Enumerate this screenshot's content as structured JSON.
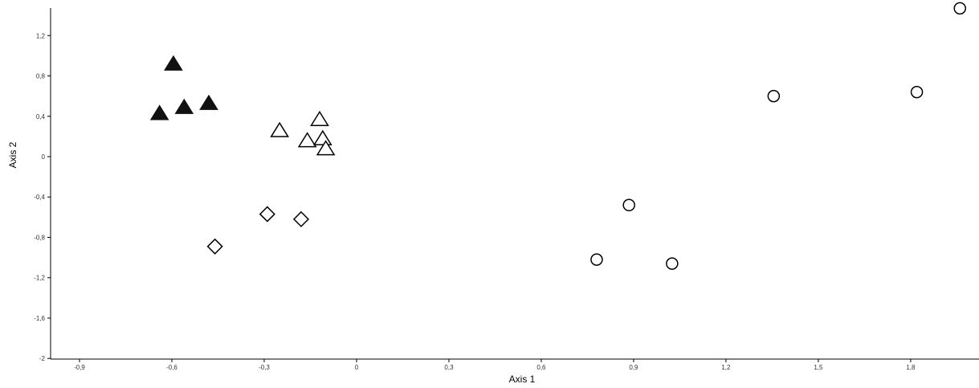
{
  "chart_data": {
    "type": "scatter",
    "title": "",
    "xlabel": "Axis 1",
    "ylabel": "Axis 2",
    "xlim": [
      -1.0,
      1.98
    ],
    "ylim": [
      -2.0,
      1.48
    ],
    "x_ticks": [
      -0.9,
      -0.6,
      -0.3,
      0,
      0.3,
      0.6,
      0.9,
      1.2,
      1.5,
      1.8
    ],
    "x_tick_labels": [
      "-0,9",
      "-0,6",
      "-0,3",
      "0",
      "0,3",
      "0,6",
      "0,9",
      "1,2",
      "1,5",
      "1,8"
    ],
    "y_ticks": [
      -2.0,
      -1.6,
      -1.2,
      -0.8,
      -0.4,
      0,
      0.4,
      0.8,
      1.2
    ],
    "y_tick_labels": [
      "-2",
      "-1,6",
      "-1,2",
      "-0,8",
      "-0,4",
      "0",
      "0,4",
      "0,8",
      "1,2"
    ],
    "grid": false,
    "legend": false,
    "series": [
      {
        "marker": "triangle-filled",
        "color": "#111111",
        "points": [
          {
            "x": -0.595,
            "y": 0.91
          },
          {
            "x": -0.64,
            "y": 0.42
          },
          {
            "x": -0.56,
            "y": 0.48
          },
          {
            "x": -0.48,
            "y": 0.52
          }
        ]
      },
      {
        "marker": "triangle-open",
        "color": "#000000",
        "points": [
          {
            "x": -0.25,
            "y": 0.25
          },
          {
            "x": -0.12,
            "y": 0.36
          },
          {
            "x": -0.16,
            "y": 0.15
          },
          {
            "x": -0.11,
            "y": 0.17
          },
          {
            "x": -0.1,
            "y": 0.07
          }
        ]
      },
      {
        "marker": "diamond-open",
        "color": "#000000",
        "points": [
          {
            "x": -0.29,
            "y": -0.57
          },
          {
            "x": -0.18,
            "y": -0.62
          },
          {
            "x": -0.46,
            "y": -0.89
          }
        ]
      },
      {
        "marker": "circle-open",
        "color": "#000000",
        "points": [
          {
            "x": 0.78,
            "y": -1.02
          },
          {
            "x": 0.885,
            "y": -0.48
          },
          {
            "x": 1.025,
            "y": -1.06
          },
          {
            "x": 1.355,
            "y": 0.6
          },
          {
            "x": 1.82,
            "y": 0.64
          },
          {
            "x": 1.96,
            "y": 1.47
          }
        ]
      }
    ]
  }
}
